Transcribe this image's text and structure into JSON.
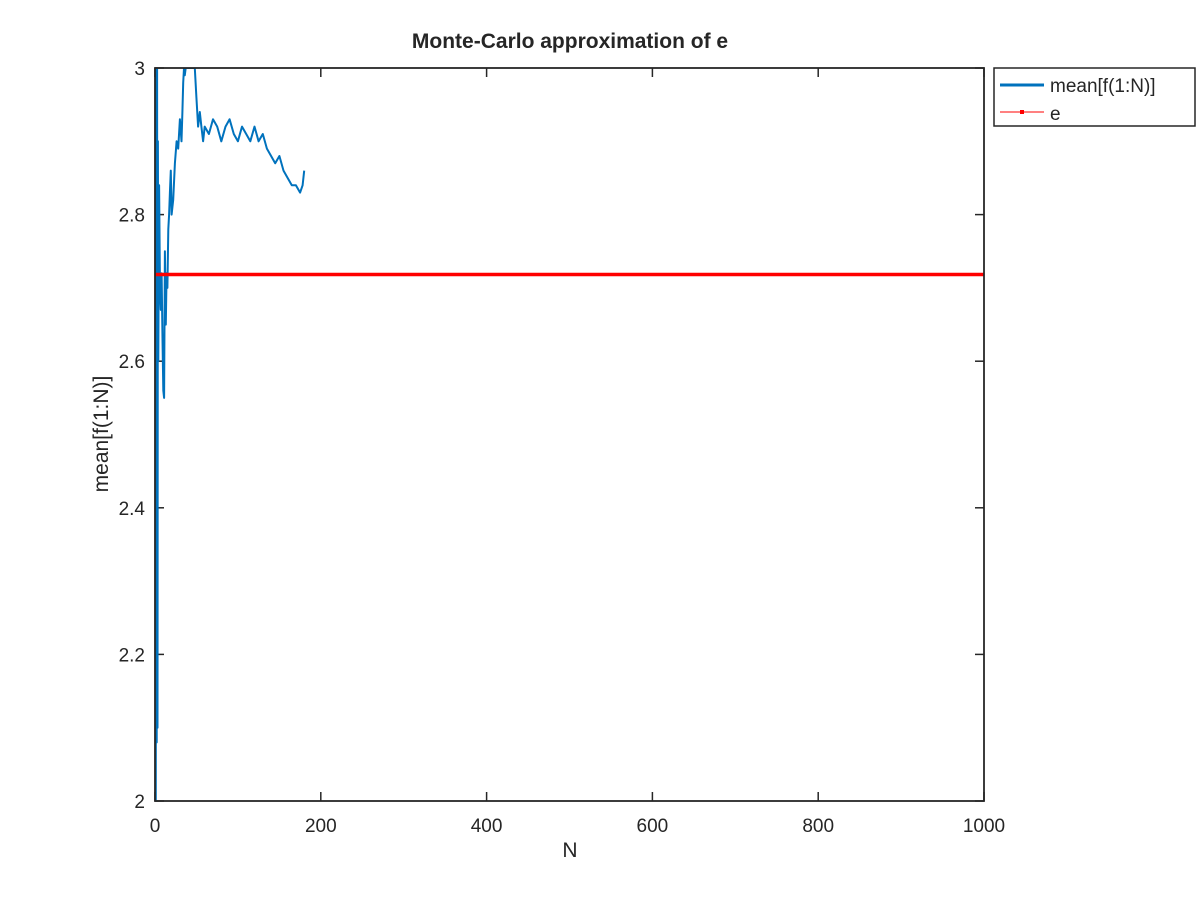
{
  "chart_data": {
    "type": "line",
    "title": "Monte-Carlo approximation of e",
    "xlabel": "N",
    "ylabel": "mean[f(1:N)]",
    "xlim": [
      0,
      1000
    ],
    "ylim": [
      2,
      3
    ],
    "xticks": [
      "0",
      "200",
      "400",
      "600",
      "800",
      "1000"
    ],
    "yticks": [
      "2",
      "2.2",
      "2.4",
      "2.6",
      "2.8",
      "3"
    ],
    "grid": false,
    "legend_position": "outside top-right",
    "series": [
      {
        "name": "mean[f(1:N)]",
        "color": "#0072bd",
        "x": [
          1,
          1.5,
          2,
          2.5,
          3,
          3.5,
          4,
          5,
          6,
          7,
          8,
          9,
          10,
          11,
          12,
          13,
          14,
          15,
          16,
          17,
          18,
          19,
          20,
          22,
          24,
          26,
          28,
          30,
          32,
          33,
          34,
          35,
          36,
          37,
          38,
          39,
          40,
          41,
          42,
          43,
          44,
          45,
          46,
          47,
          48,
          49,
          50,
          52,
          54,
          56,
          58,
          60,
          65,
          70,
          75,
          80,
          85,
          90,
          95,
          100,
          105,
          110,
          115,
          120,
          125,
          130,
          135,
          140,
          145,
          150,
          155,
          160,
          165,
          170,
          175,
          178,
          180
        ],
        "y": [
          2.0,
          3.0,
          2.08,
          3.0,
          2.1,
          2.9,
          2.6,
          2.84,
          2.7,
          2.67,
          2.72,
          2.63,
          2.56,
          2.55,
          2.75,
          2.65,
          2.72,
          2.7,
          2.78,
          2.8,
          2.83,
          2.86,
          2.8,
          2.82,
          2.87,
          2.9,
          2.89,
          2.93,
          2.9,
          2.94,
          2.98,
          3.0,
          2.99,
          3.0,
          3.0,
          3.0,
          3.0,
          3.0,
          3.0,
          3.0,
          3.0,
          3.0,
          3.0,
          3.0,
          3.0,
          2.98,
          2.96,
          2.92,
          2.94,
          2.92,
          2.9,
          2.92,
          2.91,
          2.93,
          2.92,
          2.9,
          2.92,
          2.93,
          2.91,
          2.9,
          2.92,
          2.91,
          2.9,
          2.92,
          2.9,
          2.91,
          2.89,
          2.88,
          2.87,
          2.88,
          2.86,
          2.85,
          2.84,
          2.84,
          2.83,
          2.84,
          2.86
        ]
      },
      {
        "name": "e",
        "color": "#ff0000",
        "x": [
          0,
          1000
        ],
        "y": [
          2.71828,
          2.71828
        ]
      }
    ]
  }
}
